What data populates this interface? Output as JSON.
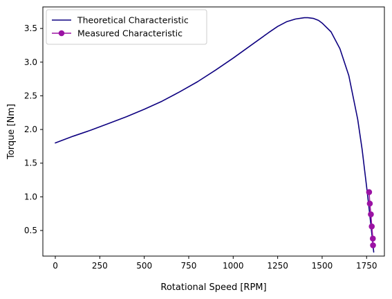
{
  "chart_data": {
    "type": "line",
    "xlabel": "Rotational Speed [RPM]",
    "ylabel": "Torque [Nm]",
    "xlim": [
      -70,
      1850
    ],
    "ylim": [
      0.12,
      3.82
    ],
    "xticks": [
      0,
      250,
      500,
      750,
      1000,
      1250,
      1500,
      1750
    ],
    "yticks": [
      0.5,
      1.0,
      1.5,
      2.0,
      2.5,
      3.0,
      3.5
    ],
    "xtick_labels": [
      "0",
      "250",
      "500",
      "750",
      "1000",
      "1250",
      "1500",
      "1750"
    ],
    "ytick_labels": [
      "0.5",
      "1.0",
      "1.5",
      "2.0",
      "2.5",
      "3.0",
      "3.5"
    ],
    "grid": false,
    "legend_position": "top-left",
    "series": [
      {
        "name": "Theoretical Characteristic",
        "style": "line",
        "color": "#0d0080",
        "x": [
          0,
          100,
          200,
          300,
          400,
          500,
          600,
          700,
          800,
          900,
          1000,
          1100,
          1200,
          1250,
          1300,
          1350,
          1400,
          1420,
          1450,
          1480,
          1500,
          1550,
          1600,
          1650,
          1700,
          1725,
          1750,
          1760,
          1770,
          1780,
          1790
        ],
        "y": [
          1.8,
          1.9,
          1.99,
          2.09,
          2.19,
          2.3,
          2.42,
          2.56,
          2.71,
          2.88,
          3.06,
          3.25,
          3.44,
          3.53,
          3.6,
          3.64,
          3.66,
          3.66,
          3.65,
          3.62,
          3.58,
          3.45,
          3.2,
          2.8,
          2.15,
          1.7,
          1.15,
          0.92,
          0.68,
          0.43,
          0.18
        ]
      },
      {
        "name": "Measured Characteristic",
        "style": "line-marker",
        "color": "#9b13a4",
        "x": [
          1764,
          1768,
          1774,
          1779,
          1785,
          1786
        ],
        "y": [
          1.07,
          0.9,
          0.74,
          0.56,
          0.38,
          0.28
        ]
      }
    ]
  }
}
